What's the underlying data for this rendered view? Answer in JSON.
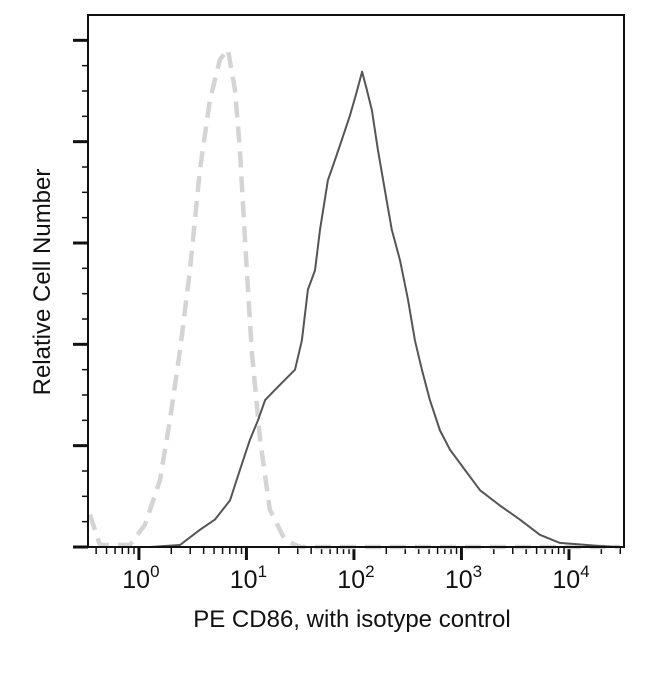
{
  "chart_data": {
    "type": "line",
    "title": "",
    "xlabel": "PE CD86, with isotype control",
    "ylabel": "Relative Cell Number",
    "x_scale": "log",
    "xlim": [
      0.336,
      32500
    ],
    "ylim": [
      0,
      5.25
    ],
    "x_ticks": [
      {
        "value": 1,
        "base": "10",
        "exp": "0"
      },
      {
        "value": 10,
        "base": "10",
        "exp": "1"
      },
      {
        "value": 100,
        "base": "10",
        "exp": "2"
      },
      {
        "value": 1000,
        "base": "10",
        "exp": "3"
      },
      {
        "value": 10000,
        "base": "10",
        "exp": "4"
      }
    ],
    "y_major_ticks": [
      0,
      1,
      2,
      3,
      4,
      5
    ],
    "y_tick_labels_shown": false,
    "grid": false,
    "legend": "none",
    "series": [
      {
        "role": "isotype control",
        "style": "dashed",
        "color": "#d4d4d4",
        "points": [
          [
            0.35,
            0.32
          ],
          [
            0.434,
            0.02
          ],
          [
            0.824,
            0.02
          ],
          [
            1.14,
            0.22
          ],
          [
            1.57,
            0.66
          ],
          [
            1.94,
            1.25
          ],
          [
            2.41,
            1.94
          ],
          [
            2.98,
            2.73
          ],
          [
            3.69,
            3.72
          ],
          [
            4.57,
            4.41
          ],
          [
            5.67,
            4.81
          ],
          [
            6.73,
            4.91
          ],
          [
            7.82,
            4.51
          ],
          [
            8.7,
            3.92
          ],
          [
            9.69,
            3.03
          ],
          [
            11.2,
            1.94
          ],
          [
            13.4,
            1.06
          ],
          [
            16.5,
            0.37
          ],
          [
            22.8,
            0.07
          ],
          [
            31.5,
            0
          ],
          [
            29800,
            0
          ]
        ]
      },
      {
        "role": "PE CD86",
        "style": "solid",
        "color": "#555555",
        "points": [
          [
            1.27,
            0
          ],
          [
            2.41,
            0.02
          ],
          [
            3.69,
            0.17
          ],
          [
            5.09,
            0.27
          ],
          [
            7.03,
            0.46
          ],
          [
            8.7,
            0.76
          ],
          [
            10.8,
            1.06
          ],
          [
            12.8,
            1.25
          ],
          [
            14.9,
            1.45
          ],
          [
            18.4,
            1.55
          ],
          [
            22.8,
            1.65
          ],
          [
            28.3,
            1.75
          ],
          [
            32.8,
            2.04
          ],
          [
            37.3,
            2.54
          ],
          [
            43.4,
            2.73
          ],
          [
            48.3,
            3.13
          ],
          [
            57.3,
            3.62
          ],
          [
            66.6,
            3.82
          ],
          [
            77.3,
            4.02
          ],
          [
            91.8,
            4.26
          ],
          [
            104,
            4.46
          ],
          [
            119,
            4.69
          ],
          [
            132,
            4.51
          ],
          [
            147,
            4.31
          ],
          [
            167,
            3.92
          ],
          [
            194,
            3.52
          ],
          [
            225,
            3.13
          ],
          [
            268,
            2.83
          ],
          [
            318,
            2.44
          ],
          [
            369,
            2.04
          ],
          [
            429,
            1.75
          ],
          [
            509,
            1.45
          ],
          [
            631,
            1.15
          ],
          [
            782,
            0.96
          ],
          [
            1080,
            0.76
          ],
          [
            1490,
            0.56
          ],
          [
            2280,
            0.41
          ],
          [
            3500,
            0.27
          ],
          [
            5370,
            0.12
          ],
          [
            8240,
            0.04
          ],
          [
            19400,
            0.01
          ],
          [
            29800,
            0
          ]
        ]
      }
    ]
  }
}
